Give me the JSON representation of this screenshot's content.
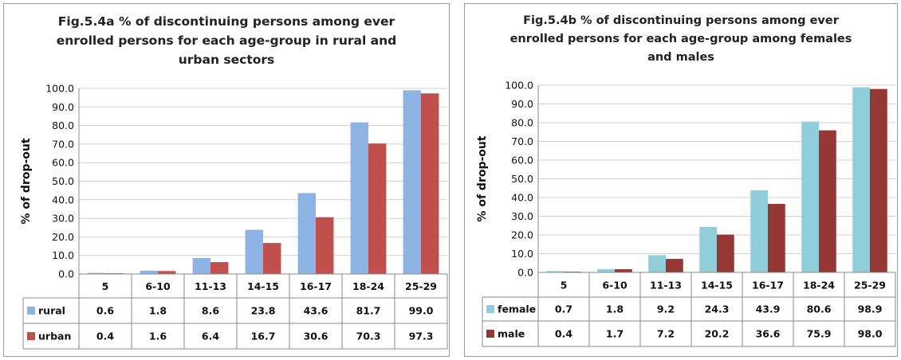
{
  "chart_data": [
    {
      "type": "bar",
      "title": "Fig.5.4a  % of discontinuing persons among ever enrolled persons for each age-group in rural and urban sectors",
      "title_lines": [
        "Fig.5.4a  % of discontinuing persons among ever",
        "enrolled persons for each age-group in rural and",
        "urban sectors"
      ],
      "ylabel": "% of drop-out",
      "xlabel": "",
      "ylim": [
        0,
        100
      ],
      "yticks": [
        "0.0",
        "10.0",
        "20.0",
        "30.0",
        "40.0",
        "50.0",
        "60.0",
        "70.0",
        "80.0",
        "90.0",
        "100.0"
      ],
      "grid": true,
      "legend": "data-table",
      "categories": [
        "5",
        "6-10",
        "11-13",
        "14-15",
        "16-17",
        "18-24",
        "25-29"
      ],
      "series": [
        {
          "name": "rural",
          "color": "#8db3e2",
          "values": [
            0.6,
            1.8,
            8.6,
            23.8,
            43.6,
            81.7,
            99.0
          ],
          "labels": [
            "0.6",
            "1.8",
            "8.6",
            "23.8",
            "43.6",
            "81.7",
            "99.0"
          ]
        },
        {
          "name": "urban",
          "color": "#c0504d",
          "values": [
            0.4,
            1.6,
            6.4,
            16.7,
            30.6,
            70.3,
            97.3
          ],
          "labels": [
            "0.4",
            "1.6",
            "6.4",
            "16.7",
            "30.6",
            "70.3",
            "97.3"
          ]
        }
      ]
    },
    {
      "type": "bar",
      "title": "Fig.5.4b % of discontinuing persons among ever enrolled persons for each age-group among females and males",
      "title_lines": [
        "Fig.5.4b % of discontinuing persons among ever",
        "enrolled persons for each age-group among females",
        "and males"
      ],
      "ylabel": "% of drop-out",
      "xlabel": "",
      "ylim": [
        0,
        100
      ],
      "yticks": [
        "0.0",
        "10.0",
        "20.0",
        "30.0",
        "40.0",
        "50.0",
        "60.0",
        "70.0",
        "80.0",
        "90.0",
        "100.0"
      ],
      "grid": true,
      "legend": "data-table",
      "categories": [
        "5",
        "6-10",
        "11-13",
        "14-15",
        "16-17",
        "18-24",
        "25-29"
      ],
      "series": [
        {
          "name": "female",
          "color": "#92cddc",
          "values": [
            0.7,
            1.8,
            9.2,
            24.3,
            43.9,
            80.6,
            98.9
          ],
          "labels": [
            "0.7",
            "1.8",
            "9.2",
            "24.3",
            "43.9",
            "80.6",
            "98.9"
          ]
        },
        {
          "name": "male",
          "color": "#953735",
          "values": [
            0.4,
            1.7,
            7.2,
            20.2,
            36.6,
            75.9,
            98.0
          ],
          "labels": [
            "0.4",
            "1.7",
            "7.2",
            "20.2",
            "36.6",
            "75.9",
            "98.0"
          ]
        }
      ]
    }
  ]
}
